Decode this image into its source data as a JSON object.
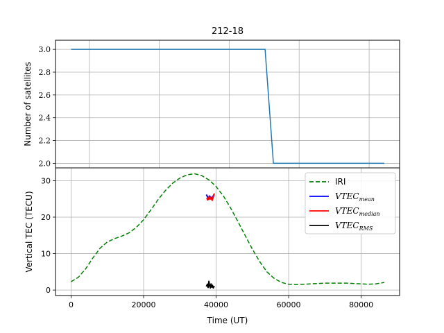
{
  "chart_data": [
    {
      "type": "line",
      "title": "212-18",
      "xlabel": "",
      "ylabel": "Number of satellites",
      "xlim": [
        -4300,
        90600
      ],
      "ylim": [
        1.96,
        3.08
      ],
      "yticks": [
        2.0,
        2.2,
        2.4,
        2.6,
        2.8,
        3.0
      ],
      "ytick_labels": [
        "2.0",
        "2.2",
        "2.4",
        "2.6",
        "2.8",
        "3.0"
      ],
      "xgrid": [
        5000,
        24300,
        43600,
        62900,
        82200
      ],
      "grid": true,
      "series": [
        {
          "color": "#1f77b4",
          "x": [
            0,
            53500,
            55800,
            86400
          ],
          "y": [
            3.0,
            3.0,
            2.0,
            2.0
          ]
        }
      ]
    },
    {
      "type": "line",
      "title": "",
      "xlabel": "Time (UT)",
      "ylabel": "Vertical TEC (TECU)",
      "xlim": [
        -4300,
        90600
      ],
      "ylim": [
        -1.5,
        33.5
      ],
      "xticks": [
        0,
        20000,
        40000,
        60000,
        80000
      ],
      "xtick_labels": [
        "0",
        "20000",
        "40000",
        "60000",
        "80000"
      ],
      "yticks": [
        0,
        10,
        20,
        30
      ],
      "ytick_labels": [
        "0",
        "10",
        "20",
        "30"
      ],
      "grid": true,
      "legend_position": "top-right",
      "legend": [
        {
          "base": "IRI",
          "sub": "",
          "style": "dashed",
          "color": "#008000",
          "math": false
        },
        {
          "base": "VTEC",
          "sub": "mean",
          "style": "solid",
          "color": "#0000ff",
          "math": true
        },
        {
          "base": "VTEC",
          "sub": "median",
          "style": "solid",
          "color": "#ff0000",
          "math": true
        },
        {
          "base": "VTEC",
          "sub": "RMS",
          "style": "solid",
          "color": "#000000",
          "math": true
        }
      ],
      "series": [
        {
          "name": "IRI",
          "color": "#008000",
          "style": "dashed",
          "x": [
            0,
            2000,
            4000,
            6000,
            8000,
            10000,
            12000,
            14000,
            16000,
            18000,
            20000,
            22000,
            24000,
            26000,
            28000,
            30000,
            32000,
            34000,
            36000,
            38000,
            40000,
            42000,
            44000,
            46000,
            48000,
            50000,
            52000,
            54000,
            56000,
            58000,
            60000,
            62000,
            64000,
            66000,
            68000,
            70000,
            72000,
            74000,
            76000,
            78000,
            80000,
            82000,
            84000,
            86400
          ],
          "y": [
            2.3,
            3.5,
            5.8,
            8.8,
            11.5,
            13.2,
            14.1,
            14.8,
            15.7,
            17.2,
            19.3,
            22.0,
            24.8,
            27.3,
            29.3,
            30.7,
            31.6,
            31.9,
            31.4,
            30.2,
            28.4,
            25.8,
            22.5,
            18.8,
            15.0,
            11.2,
            7.8,
            5.0,
            3.2,
            2.1,
            1.6,
            1.5,
            1.6,
            1.7,
            1.8,
            1.9,
            1.9,
            1.9,
            1.9,
            1.8,
            1.7,
            1.6,
            1.7,
            2.1
          ]
        },
        {
          "name": "VTEC_mean",
          "color": "#0000ff",
          "style": "solid",
          "x": [
            37300,
            37600,
            37900,
            38200,
            38500,
            38800,
            39100,
            39400
          ],
          "y": [
            26.2,
            25.6,
            25.0,
            25.8,
            25.2,
            24.9,
            25.6,
            26.2
          ]
        },
        {
          "name": "VTEC_median",
          "color": "#ff0000",
          "style": "solid",
          "x": [
            37400,
            37700,
            38000,
            38300,
            38600,
            38900,
            39200,
            39500
          ],
          "y": [
            25.2,
            24.7,
            25.6,
            24.9,
            25.5,
            24.6,
            25.5,
            26.5
          ]
        },
        {
          "name": "VTEC_RMS",
          "color": "#000000",
          "style": "solid",
          "x": [
            37300,
            37600,
            37800,
            38000,
            38200,
            38400,
            38600,
            38800,
            39000,
            39200,
            39500
          ],
          "y": [
            1.0,
            1.6,
            0.7,
            2.4,
            1.2,
            0.6,
            1.7,
            0.8,
            1.3,
            0.6,
            1.1
          ]
        }
      ]
    }
  ]
}
